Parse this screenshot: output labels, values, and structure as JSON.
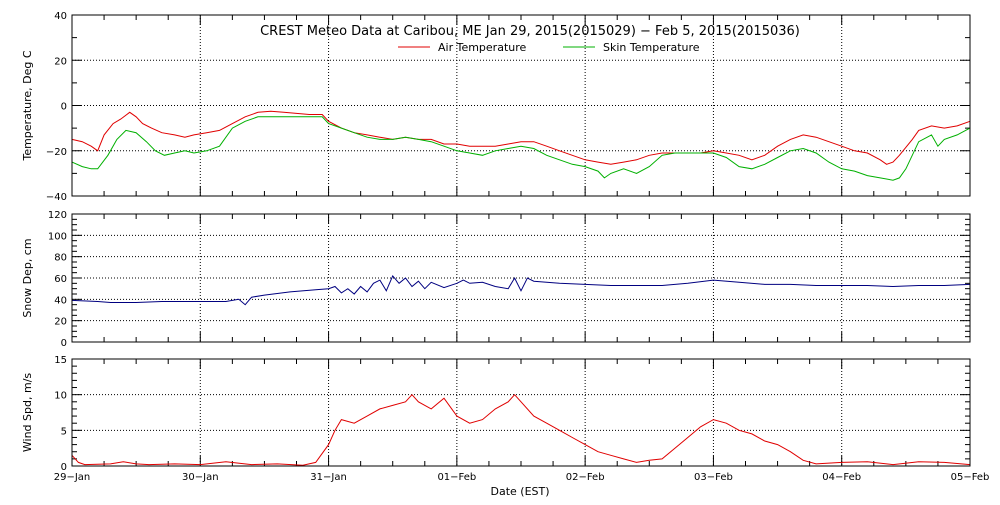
{
  "chart_data": [
    {
      "type": "line",
      "title": "CREST Meteo Data at Caribou, ME   Jan 29, 2015(2015029) − Feb  5, 2015(2015036)",
      "ylabel": "Temperature, Deg C",
      "ylim": [
        -40,
        40
      ],
      "yticks": [
        "−40",
        "−20",
        "0",
        "20",
        "40"
      ],
      "xlim_days": [
        0,
        7
      ],
      "grid": true,
      "legend_position": "top-center",
      "series": [
        {
          "name": "Air Temperature",
          "color": "#e00000",
          "points": [
            [
              0,
              -15
            ],
            [
              0.08,
              -16
            ],
            [
              0.15,
              -18
            ],
            [
              0.2,
              -20
            ],
            [
              0.25,
              -13
            ],
            [
              0.32,
              -8
            ],
            [
              0.38,
              -6
            ],
            [
              0.45,
              -3
            ],
            [
              0.5,
              -5
            ],
            [
              0.55,
              -8
            ],
            [
              0.62,
              -10
            ],
            [
              0.7,
              -12
            ],
            [
              0.8,
              -13
            ],
            [
              0.88,
              -14
            ],
            [
              0.95,
              -13
            ],
            [
              1.05,
              -12
            ],
            [
              1.15,
              -11
            ],
            [
              1.25,
              -8
            ],
            [
              1.35,
              -5
            ],
            [
              1.45,
              -3
            ],
            [
              1.55,
              -2.5
            ],
            [
              1.65,
              -3
            ],
            [
              1.75,
              -3.5
            ],
            [
              1.85,
              -4
            ],
            [
              1.95,
              -4
            ],
            [
              2.0,
              -7
            ],
            [
              2.1,
              -10
            ],
            [
              2.2,
              -12
            ],
            [
              2.3,
              -13
            ],
            [
              2.4,
              -14
            ],
            [
              2.5,
              -15
            ],
            [
              2.6,
              -14
            ],
            [
              2.7,
              -15
            ],
            [
              2.8,
              -15
            ],
            [
              2.9,
              -17
            ],
            [
              3.0,
              -17
            ],
            [
              3.1,
              -18
            ],
            [
              3.2,
              -18
            ],
            [
              3.3,
              -18
            ],
            [
              3.4,
              -17
            ],
            [
              3.5,
              -16
            ],
            [
              3.6,
              -16
            ],
            [
              3.7,
              -18
            ],
            [
              3.8,
              -20
            ],
            [
              3.9,
              -22
            ],
            [
              4.0,
              -24
            ],
            [
              4.1,
              -25
            ],
            [
              4.2,
              -26
            ],
            [
              4.3,
              -25
            ],
            [
              4.4,
              -24
            ],
            [
              4.5,
              -22
            ],
            [
              4.6,
              -21
            ],
            [
              4.7,
              -21
            ],
            [
              4.8,
              -21
            ],
            [
              4.9,
              -21
            ],
            [
              5.0,
              -20
            ],
            [
              5.1,
              -21
            ],
            [
              5.2,
              -22
            ],
            [
              5.3,
              -24
            ],
            [
              5.4,
              -22
            ],
            [
              5.5,
              -18
            ],
            [
              5.6,
              -15
            ],
            [
              5.7,
              -13
            ],
            [
              5.8,
              -14
            ],
            [
              5.9,
              -16
            ],
            [
              6.0,
              -18
            ],
            [
              6.1,
              -20
            ],
            [
              6.2,
              -21
            ],
            [
              6.3,
              -24
            ],
            [
              6.35,
              -26
            ],
            [
              6.4,
              -25
            ],
            [
              6.45,
              -22
            ],
            [
              6.55,
              -15
            ],
            [
              6.6,
              -11
            ],
            [
              6.7,
              -9
            ],
            [
              6.8,
              -10
            ],
            [
              6.9,
              -9
            ],
            [
              7.0,
              -7
            ]
          ]
        },
        {
          "name": "Skin Temperature",
          "color": "#00b000",
          "points": [
            [
              0,
              -25
            ],
            [
              0.08,
              -27
            ],
            [
              0.15,
              -28
            ],
            [
              0.2,
              -28
            ],
            [
              0.28,
              -22
            ],
            [
              0.35,
              -15
            ],
            [
              0.42,
              -11
            ],
            [
              0.5,
              -12
            ],
            [
              0.58,
              -16
            ],
            [
              0.65,
              -20
            ],
            [
              0.72,
              -22
            ],
            [
              0.8,
              -21
            ],
            [
              0.88,
              -20
            ],
            [
              0.95,
              -21
            ],
            [
              1.05,
              -20
            ],
            [
              1.15,
              -18
            ],
            [
              1.25,
              -10
            ],
            [
              1.35,
              -7
            ],
            [
              1.45,
              -5
            ],
            [
              1.55,
              -5
            ],
            [
              1.65,
              -5
            ],
            [
              1.75,
              -5
            ],
            [
              1.85,
              -5
            ],
            [
              1.95,
              -5
            ],
            [
              2.0,
              -8
            ],
            [
              2.1,
              -10
            ],
            [
              2.2,
              -12
            ],
            [
              2.3,
              -14
            ],
            [
              2.4,
              -15
            ],
            [
              2.5,
              -15
            ],
            [
              2.6,
              -14
            ],
            [
              2.7,
              -15
            ],
            [
              2.8,
              -16
            ],
            [
              2.9,
              -18
            ],
            [
              3.0,
              -20
            ],
            [
              3.1,
              -21
            ],
            [
              3.2,
              -22
            ],
            [
              3.3,
              -20
            ],
            [
              3.4,
              -19
            ],
            [
              3.5,
              -18
            ],
            [
              3.6,
              -19
            ],
            [
              3.7,
              -22
            ],
            [
              3.8,
              -24
            ],
            [
              3.9,
              -26
            ],
            [
              4.0,
              -27
            ],
            [
              4.1,
              -29
            ],
            [
              4.15,
              -32
            ],
            [
              4.2,
              -30
            ],
            [
              4.3,
              -28
            ],
            [
              4.4,
              -30
            ],
            [
              4.5,
              -27
            ],
            [
              4.6,
              -22
            ],
            [
              4.7,
              -21
            ],
            [
              4.8,
              -21
            ],
            [
              4.9,
              -21
            ],
            [
              5.0,
              -21
            ],
            [
              5.1,
              -23
            ],
            [
              5.2,
              -27
            ],
            [
              5.3,
              -28
            ],
            [
              5.4,
              -26
            ],
            [
              5.5,
              -23
            ],
            [
              5.6,
              -20
            ],
            [
              5.7,
              -19
            ],
            [
              5.8,
              -21
            ],
            [
              5.9,
              -25
            ],
            [
              6.0,
              -28
            ],
            [
              6.1,
              -29
            ],
            [
              6.2,
              -31
            ],
            [
              6.3,
              -32
            ],
            [
              6.4,
              -33
            ],
            [
              6.45,
              -32
            ],
            [
              6.5,
              -28
            ],
            [
              6.6,
              -16
            ],
            [
              6.7,
              -13
            ],
            [
              6.75,
              -18
            ],
            [
              6.8,
              -15
            ],
            [
              6.9,
              -13
            ],
            [
              7.0,
              -10
            ]
          ]
        }
      ]
    },
    {
      "type": "line",
      "ylabel": "Snow Dep, cm",
      "ylim": [
        0,
        120
      ],
      "yticks": [
        "0",
        "20",
        "40",
        "60",
        "80",
        "100",
        "120"
      ],
      "xlim_days": [
        0,
        7
      ],
      "grid": true,
      "series": [
        {
          "color": "#000080",
          "points": [
            [
              0,
              39
            ],
            [
              0.2,
              38
            ],
            [
              0.3,
              37
            ],
            [
              0.5,
              37
            ],
            [
              0.7,
              38
            ],
            [
              0.9,
              38
            ],
            [
              1.1,
              38
            ],
            [
              1.2,
              38
            ],
            [
              1.3,
              40
            ],
            [
              1.35,
              35
            ],
            [
              1.4,
              42
            ],
            [
              1.5,
              44
            ],
            [
              1.7,
              47
            ],
            [
              1.9,
              49
            ],
            [
              2.0,
              50
            ],
            [
              2.05,
              52
            ],
            [
              2.1,
              46
            ],
            [
              2.15,
              50
            ],
            [
              2.2,
              45
            ],
            [
              2.25,
              52
            ],
            [
              2.3,
              47
            ],
            [
              2.35,
              55
            ],
            [
              2.4,
              58
            ],
            [
              2.45,
              48
            ],
            [
              2.5,
              62
            ],
            [
              2.55,
              55
            ],
            [
              2.6,
              60
            ],
            [
              2.65,
              52
            ],
            [
              2.7,
              57
            ],
            [
              2.75,
              50
            ],
            [
              2.8,
              56
            ],
            [
              2.9,
              51
            ],
            [
              3.0,
              55
            ],
            [
              3.05,
              58
            ],
            [
              3.1,
              55
            ],
            [
              3.2,
              56
            ],
            [
              3.3,
              52
            ],
            [
              3.4,
              50
            ],
            [
              3.45,
              60
            ],
            [
              3.5,
              48
            ],
            [
              3.55,
              60
            ],
            [
              3.6,
              57
            ],
            [
              3.8,
              55
            ],
            [
              4.0,
              54
            ],
            [
              4.2,
              53
            ],
            [
              4.4,
              53
            ],
            [
              4.6,
              53
            ],
            [
              4.8,
              55
            ],
            [
              5.0,
              58
            ],
            [
              5.2,
              56
            ],
            [
              5.4,
              54
            ],
            [
              5.6,
              54
            ],
            [
              5.8,
              53
            ],
            [
              6.0,
              53
            ],
            [
              6.2,
              53
            ],
            [
              6.4,
              52
            ],
            [
              6.6,
              53
            ],
            [
              6.8,
              53
            ],
            [
              7.0,
              54
            ]
          ]
        }
      ]
    },
    {
      "type": "line",
      "ylabel": "Wind Spd, m/s",
      "ylim": [
        0,
        15
      ],
      "yticks": [
        "0",
        "5",
        "10",
        "15"
      ],
      "xlim_days": [
        0,
        7
      ],
      "xlabel": "Date (EST)",
      "xticks": [
        "29−Jan",
        "30−Jan",
        "31−Jan",
        "01−Feb",
        "02−Feb",
        "03−Feb",
        "04−Feb",
        "05−Feb"
      ],
      "grid": true,
      "series": [
        {
          "color": "#e00000",
          "points": [
            [
              0,
              1.5
            ],
            [
              0.05,
              0.5
            ],
            [
              0.1,
              0.2
            ],
            [
              0.3,
              0.3
            ],
            [
              0.4,
              0.6
            ],
            [
              0.5,
              0.3
            ],
            [
              0.6,
              0.2
            ],
            [
              0.8,
              0.3
            ],
            [
              1.0,
              0.2
            ],
            [
              1.2,
              0.6
            ],
            [
              1.4,
              0.2
            ],
            [
              1.6,
              0.3
            ],
            [
              1.8,
              0.1
            ],
            [
              1.9,
              0.5
            ],
            [
              2.0,
              3
            ],
            [
              2.05,
              5
            ],
            [
              2.1,
              6.5
            ],
            [
              2.2,
              6
            ],
            [
              2.3,
              7
            ],
            [
              2.4,
              8
            ],
            [
              2.5,
              8.5
            ],
            [
              2.6,
              9
            ],
            [
              2.65,
              10
            ],
            [
              2.7,
              9
            ],
            [
              2.8,
              8
            ],
            [
              2.9,
              9.5
            ],
            [
              3.0,
              7
            ],
            [
              3.1,
              6
            ],
            [
              3.2,
              6.5
            ],
            [
              3.3,
              8
            ],
            [
              3.4,
              9
            ],
            [
              3.45,
              10
            ],
            [
              3.5,
              9
            ],
            [
              3.6,
              7
            ],
            [
              3.7,
              6
            ],
            [
              3.8,
              5
            ],
            [
              3.9,
              4
            ],
            [
              4.0,
              3
            ],
            [
              4.1,
              2
            ],
            [
              4.2,
              1.5
            ],
            [
              4.3,
              1
            ],
            [
              4.4,
              0.5
            ],
            [
              4.5,
              0.8
            ],
            [
              4.6,
              1
            ],
            [
              4.7,
              2.5
            ],
            [
              4.8,
              4
            ],
            [
              4.9,
              5.5
            ],
            [
              5.0,
              6.5
            ],
            [
              5.1,
              6
            ],
            [
              5.2,
              5
            ],
            [
              5.3,
              4.5
            ],
            [
              5.4,
              3.5
            ],
            [
              5.5,
              3
            ],
            [
              5.6,
              2
            ],
            [
              5.7,
              0.8
            ],
            [
              5.8,
              0.3
            ],
            [
              6.0,
              0.5
            ],
            [
              6.2,
              0.6
            ],
            [
              6.4,
              0.2
            ],
            [
              6.6,
              0.6
            ],
            [
              6.8,
              0.5
            ],
            [
              7.0,
              0.2
            ]
          ]
        }
      ]
    }
  ]
}
